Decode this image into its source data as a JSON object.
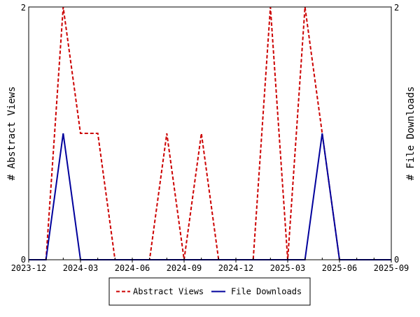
{
  "chart_data": {
    "type": "line",
    "x_type": "date",
    "x": [
      "2023-12",
      "2024-01",
      "2024-02",
      "2024-03",
      "2024-04",
      "2024-05",
      "2024-06",
      "2024-07",
      "2024-08",
      "2024-09",
      "2024-10",
      "2024-11",
      "2024-12",
      "2025-01",
      "2025-02",
      "2025-03",
      "2025-04",
      "2025-05",
      "2025-06",
      "2025-07",
      "2025-08",
      "2025-09"
    ],
    "series": [
      {
        "name": "Abstract Views",
        "color": "#cc0000",
        "dash": "dashed",
        "values": [
          0,
          0,
          2,
          1,
          1,
          0,
          0,
          0,
          1,
          0,
          1,
          0,
          0,
          0,
          2,
          0,
          2,
          1,
          0,
          0,
          0,
          0
        ]
      },
      {
        "name": "File Downloads",
        "color": "#00009c",
        "dash": "solid",
        "values": [
          0,
          0,
          1,
          0,
          0,
          0,
          0,
          0,
          0,
          0,
          0,
          0,
          0,
          0,
          0,
          0,
          0,
          1,
          0,
          0,
          0,
          0
        ]
      }
    ],
    "xticks": [
      "2023-12",
      "2024-03",
      "2024-06",
      "2024-09",
      "2024-12",
      "2025-03",
      "2025-06",
      "2025-09"
    ],
    "ylabel_left": "# Abstract Views",
    "ylabel_right": "# File Downloads",
    "ylim": [
      0,
      2
    ],
    "yticks": [
      "0",
      "2"
    ],
    "legend_position": "bottom",
    "grid": false
  }
}
